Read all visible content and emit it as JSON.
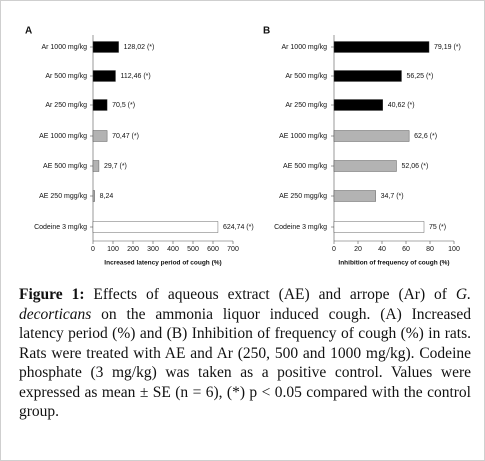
{
  "chart_data": [
    {
      "type": "bar",
      "orientation": "horizontal",
      "title": "A",
      "categories": [
        "Ar 1000 mg/kg",
        "Ar 500 mg/kg",
        "Ar 250 mg/kg",
        "AE 1000 mg/kg",
        "AE 500 mg/kg",
        "AE 250 mgg/kg",
        "Codeine 3 mg/kg"
      ],
      "values": [
        128.02,
        112.46,
        70.5,
        70.47,
        29.7,
        8.24,
        624.74
      ],
      "value_labels": [
        "128,02 (*)",
        "112,46 (*)",
        "70,5 (*)",
        "70,47 (*)",
        "29,7 (*)",
        "8,24",
        "624,74 (*)"
      ],
      "colors": [
        "#000000",
        "#000000",
        "#000000",
        "#b3b3b3",
        "#b3b3b3",
        "#b3b3b3",
        "#ffffff"
      ],
      "xlim": [
        0,
        700
      ],
      "xticks": [
        0,
        100,
        200,
        300,
        400,
        500,
        600,
        700
      ],
      "xlabel": "Increased latency period of cough (%)"
    },
    {
      "type": "bar",
      "orientation": "horizontal",
      "title": "B",
      "categories": [
        "Ar 1000 mg/kg",
        "Ar 500 mg/kg",
        "Ar 250 mg/kg",
        "AE 1000 mg/kg",
        "AE 500 mg/kg",
        "AE 250 mgg/kg",
        "Codeine 3 mg/kg"
      ],
      "values": [
        79.19,
        56.25,
        40.62,
        62.6,
        52.06,
        34.7,
        75
      ],
      "value_labels": [
        "79,19 (*)",
        "56,25 (*)",
        "40,62 (*)",
        "62,6 (*)",
        "52,06 (*)",
        "34,7 (*)",
        "75 (*)"
      ],
      "colors": [
        "#000000",
        "#000000",
        "#000000",
        "#b3b3b3",
        "#b3b3b3",
        "#b3b3b3",
        "#ffffff"
      ],
      "xlim": [
        0,
        100
      ],
      "xticks": [
        0,
        20,
        40,
        60,
        80,
        100
      ],
      "xlabel": "Inhibition of frequency of cough (%)"
    }
  ],
  "caption": {
    "label": "Figure 1:",
    "parts": [
      " Effects of aqueous extract (AE) and arrope (Ar) of ",
      "G. decorticans",
      " on the ammonia liquor induced cough. (A) Increased latency period (%) and (B) Inhibition of frequency of cough (%) in rats. Rats were treated with AE and Ar (250, 500 and 1000 mg/kg). Codeine phosphate (3 mg/kg) was taken as a positive control. Values were expressed as mean ± SE (n = 6), (*) p < 0.05 compared with the control group."
    ]
  }
}
